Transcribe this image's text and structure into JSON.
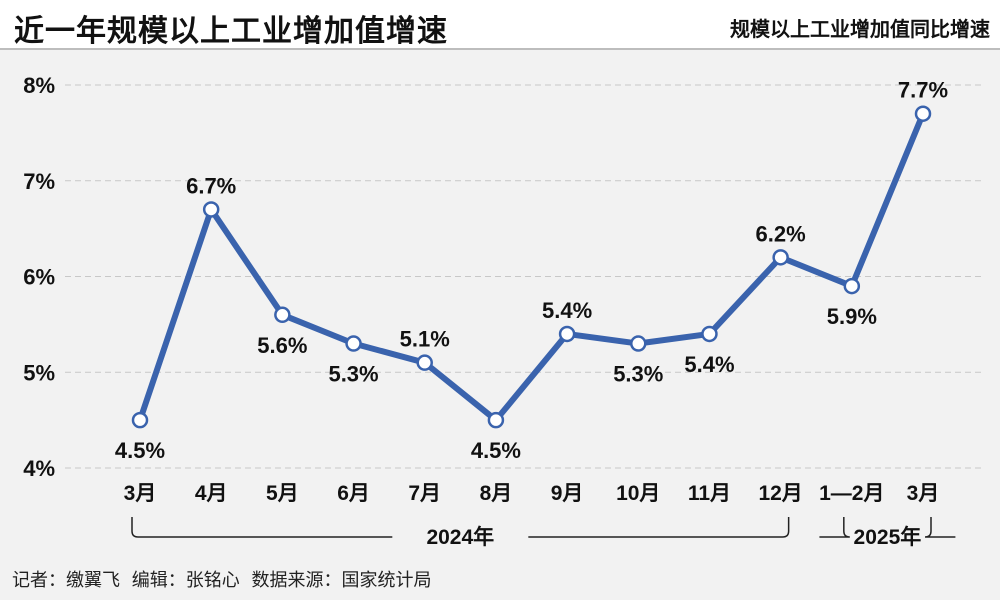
{
  "header": {
    "title": "近一年规模以上工业增加值增速",
    "subtitle": "规模以上工业增加值同比增速"
  },
  "footer": {
    "reporter": "记者：缴翼飞",
    "editor": "编辑：张铭心",
    "source": "数据来源：国家统计局"
  },
  "colors": {
    "line": "#3a63ad",
    "grid": "#c8c8c8",
    "marker_fill": "#ffffff"
  },
  "chart_data": {
    "type": "line",
    "title": "近一年规模以上工业增加值增速",
    "subtitle": "规模以上工业增加值同比增速",
    "categories": [
      "3月",
      "4月",
      "5月",
      "6月",
      "7月",
      "8月",
      "9月",
      "10月",
      "11月",
      "12月",
      "1—2月",
      "3月"
    ],
    "series": [
      {
        "values": [
          4.5,
          6.7,
          5.6,
          5.3,
          5.1,
          4.5,
          5.4,
          5.3,
          5.4,
          6.2,
          5.9,
          7.7
        ]
      }
    ],
    "data_labels": [
      "4.5%",
      "6.7%",
      "5.6%",
      "5.3%",
      "5.1%",
      "4.5%",
      "5.4%",
      "5.3%",
      "5.4%",
      "6.2%",
      "5.9%",
      "7.7%"
    ],
    "label_position": [
      "below",
      "above",
      "below",
      "below",
      "above",
      "below",
      "above",
      "below",
      "below",
      "above",
      "below",
      "above"
    ],
    "y_ticks": [
      "4%",
      "5%",
      "6%",
      "7%",
      "8%"
    ],
    "ylim": [
      4,
      8
    ],
    "grid": "horizontal dashed",
    "year_groups": [
      {
        "label": "2024年",
        "from": 0,
        "to": 9
      },
      {
        "label": "2025年",
        "from": 10,
        "to": 11
      }
    ]
  }
}
